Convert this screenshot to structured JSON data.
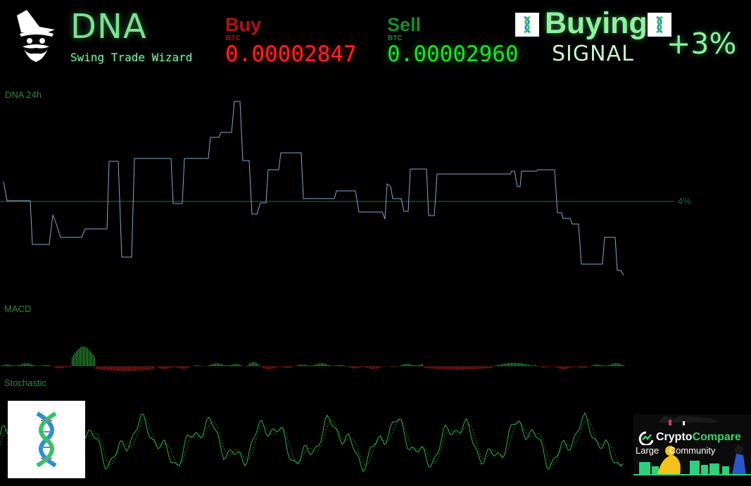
{
  "header": {
    "title": "DNA",
    "subtitle": "Swing Trade Wizard"
  },
  "buy": {
    "label": "Buy",
    "unit": "BTC",
    "price": "0.00002847"
  },
  "sell": {
    "label": "Sell",
    "unit": "BTC",
    "price": "0.00002960"
  },
  "signal": {
    "action": "Buying",
    "label": "SIGNAL",
    "change": "+3%"
  },
  "panels": {
    "price_label": "DNA 24h",
    "macd_label": "MACD",
    "stochastic_label": "Stochastic",
    "threshold_label": "4%"
  },
  "banner": {
    "brand_prefix": "Crypto",
    "brand_suffix": "Compare",
    "tagline": "Large    Community"
  },
  "colors": {
    "price_line": "#7fa9cc",
    "threshold_line": "#1f7a2a",
    "macd_positive": "#2fa83a",
    "macd_negative": "#b32020",
    "stochastic": "#2fb33a"
  },
  "icons": [
    "wizard-logo-icon",
    "dna-coin-icon",
    "dna-coin-icon",
    "dna-logo-icon",
    "cryptocompare-logo-icon"
  ]
}
